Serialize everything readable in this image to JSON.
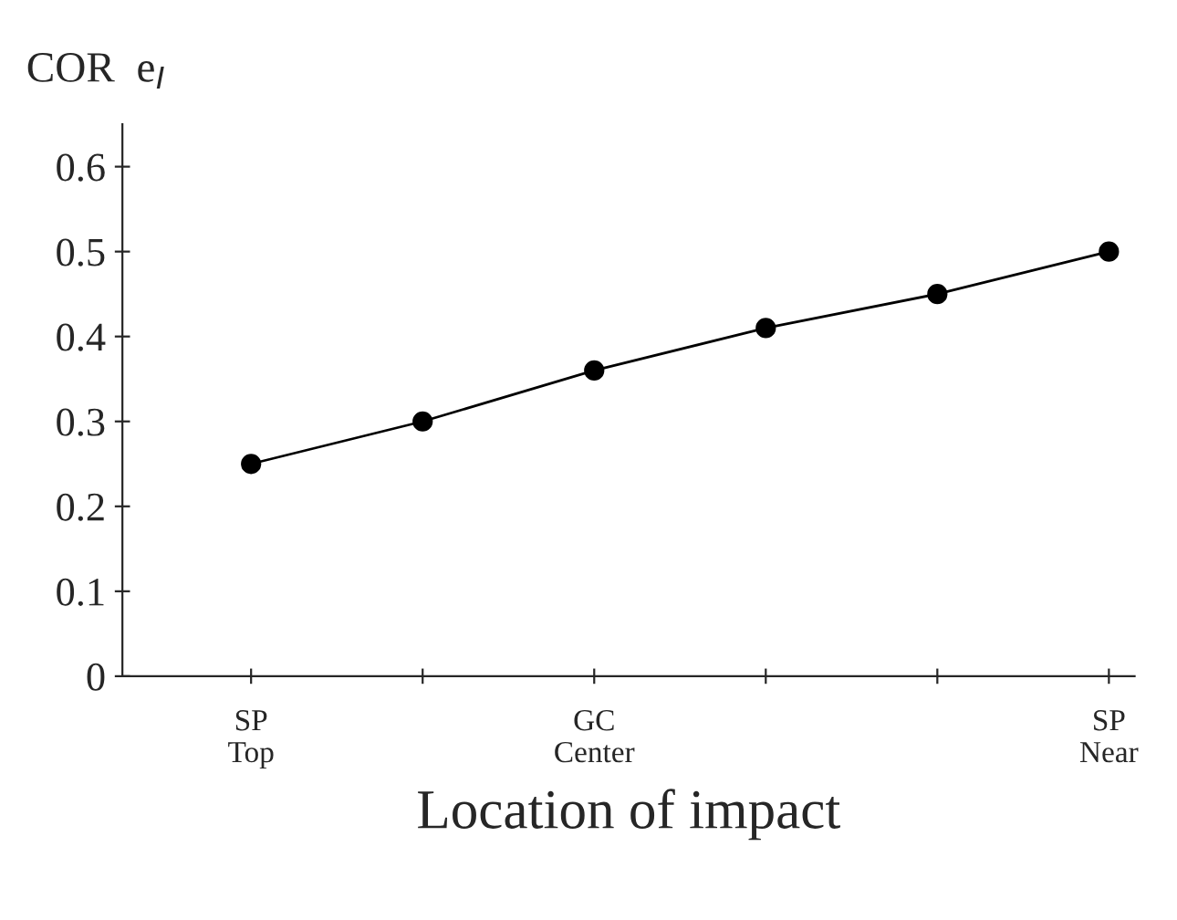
{
  "chart_data": {
    "type": "line",
    "ylabel": "COR  e$_{I}$",
    "xlabel": "Location of impact",
    "categories": [
      "SP\nTop",
      null,
      "GC\nCenter",
      null,
      null,
      "SP\nNear"
    ],
    "series": [
      {
        "color": "#000000",
        "values": [
          0.25,
          0.3,
          0.36,
          0.41,
          0.45,
          0.5
        ]
      }
    ],
    "ylim": [
      0,
      0.65
    ],
    "yticks": [
      0,
      0.1,
      0.2,
      0.3,
      0.4,
      0.5,
      0.6
    ],
    "marker": "circle",
    "line_style": "solid",
    "grid": false,
    "legend": false
  }
}
